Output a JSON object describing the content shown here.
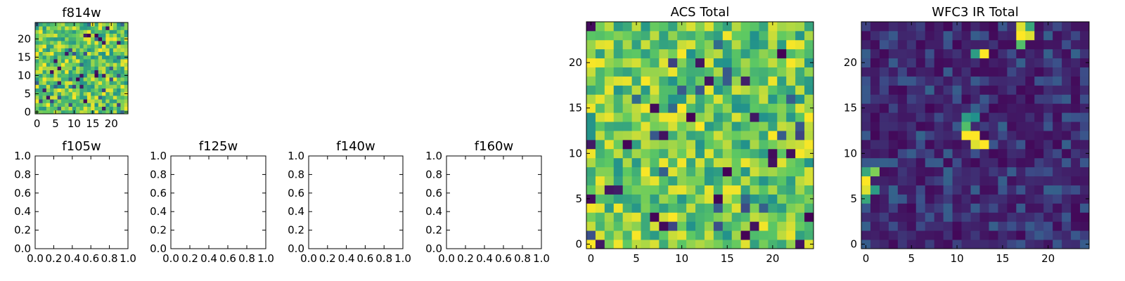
{
  "figure": {
    "background": "#ffffff"
  },
  "colormap": {
    "name": "viridis",
    "stops": [
      "#440154",
      "#3b528b",
      "#21918c",
      "#5ec962",
      "#fde725"
    ]
  },
  "chart_data": [
    {
      "id": "f814w",
      "type": "heatmap",
      "title": "f814w",
      "xlim": [
        -0.5,
        24.5
      ],
      "ylim": [
        -0.5,
        24.5
      ],
      "xticks": [
        0,
        5,
        10,
        15,
        20
      ],
      "xtick_labels": [
        "0",
        "5",
        "10",
        "15",
        "20"
      ],
      "yticks": [
        0,
        5,
        10,
        15,
        20
      ],
      "ytick_labels": [
        "0",
        "5",
        "10",
        "15",
        "20"
      ],
      "grid": false,
      "grid_size": [
        25,
        25
      ],
      "values_description": "noise-like pixel intensities, mostly green-yellow",
      "seed": 11,
      "distribution": "noise_high",
      "hotspots": []
    },
    {
      "id": "f105w",
      "type": "empty",
      "title": "f105w",
      "xlim": [
        0,
        1
      ],
      "ylim": [
        0,
        1
      ],
      "xticks": [
        0,
        0.2,
        0.4,
        0.6,
        0.8,
        1.0
      ],
      "xtick_labels": [
        "0.0",
        "0.2",
        "0.4",
        "0.6",
        "0.8",
        "1.0"
      ],
      "yticks": [
        0,
        0.2,
        0.4,
        0.6,
        0.8,
        1.0
      ],
      "ytick_labels": [
        "0.0",
        "0.2",
        "0.4",
        "0.6",
        "0.8",
        "1.0"
      ],
      "grid": false
    },
    {
      "id": "f125w",
      "type": "empty",
      "title": "f125w",
      "xlim": [
        0,
        1
      ],
      "ylim": [
        0,
        1
      ],
      "xticks": [
        0,
        0.2,
        0.4,
        0.6,
        0.8,
        1.0
      ],
      "xtick_labels": [
        "0.0",
        "0.2",
        "0.4",
        "0.6",
        "0.8",
        "1.0"
      ],
      "yticks": [
        0,
        0.2,
        0.4,
        0.6,
        0.8,
        1.0
      ],
      "ytick_labels": [
        "0.0",
        "0.2",
        "0.4",
        "0.6",
        "0.8",
        "1.0"
      ],
      "grid": false
    },
    {
      "id": "f140w",
      "type": "empty",
      "title": "f140w",
      "xlim": [
        0,
        1
      ],
      "ylim": [
        0,
        1
      ],
      "xticks": [
        0,
        0.2,
        0.4,
        0.6,
        0.8,
        1.0
      ],
      "xtick_labels": [
        "0.0",
        "0.2",
        "0.4",
        "0.6",
        "0.8",
        "1.0"
      ],
      "yticks": [
        0,
        0.2,
        0.4,
        0.6,
        0.8,
        1.0
      ],
      "ytick_labels": [
        "0.0",
        "0.2",
        "0.4",
        "0.6",
        "0.8",
        "1.0"
      ],
      "grid": false
    },
    {
      "id": "f160w",
      "type": "empty",
      "title": "f160w",
      "xlim": [
        0,
        1
      ],
      "ylim": [
        0,
        1
      ],
      "xticks": [
        0,
        0.2,
        0.4,
        0.6,
        0.8,
        1.0
      ],
      "xtick_labels": [
        "0.0",
        "0.2",
        "0.4",
        "0.6",
        "0.8",
        "1.0"
      ],
      "yticks": [
        0,
        0.2,
        0.4,
        0.6,
        0.8,
        1.0
      ],
      "ytick_labels": [
        "0.0",
        "0.2",
        "0.4",
        "0.6",
        "0.8",
        "1.0"
      ],
      "grid": false
    },
    {
      "id": "acs_total",
      "type": "heatmap",
      "title": "ACS Total",
      "xlim": [
        -0.5,
        24.5
      ],
      "ylim": [
        -0.5,
        24.5
      ],
      "xticks": [
        0,
        5,
        10,
        15,
        20
      ],
      "xtick_labels": [
        "0",
        "5",
        "10",
        "15",
        "20"
      ],
      "yticks": [
        0,
        5,
        10,
        15,
        20
      ],
      "ytick_labels": [
        "0",
        "5",
        "10",
        "15",
        "20"
      ],
      "grid": false,
      "grid_size": [
        25,
        25
      ],
      "values_description": "noise-like pixel intensities, mostly green-yellow with scattered dark pixels",
      "seed": 37,
      "distribution": "noise_high",
      "hotspots": []
    },
    {
      "id": "wfc3_ir_total",
      "type": "heatmap",
      "title": "WFC3 IR Total",
      "xlim": [
        -0.5,
        24.5
      ],
      "ylim": [
        -0.5,
        24.5
      ],
      "xticks": [
        0,
        5,
        10,
        15,
        20
      ],
      "xtick_labels": [
        "0",
        "5",
        "10",
        "15",
        "20"
      ],
      "yticks": [
        0,
        5,
        10,
        15,
        20
      ],
      "ytick_labels": [
        "0",
        "5",
        "10",
        "15",
        "20"
      ],
      "grid": false,
      "grid_size": [
        25,
        25
      ],
      "values_description": "low background (dark purple) with a few bright sources",
      "seed": 73,
      "distribution": "noise_low",
      "hotspots": [
        {
          "x": 17,
          "y": 24,
          "v": 0.95
        },
        {
          "x": 18,
          "y": 24,
          "v": 0.6
        },
        {
          "x": 17,
          "y": 23,
          "v": 1.0
        },
        {
          "x": 18,
          "y": 23,
          "v": 0.95
        },
        {
          "x": 17,
          "y": 22,
          "v": 0.7
        },
        {
          "x": 13,
          "y": 21,
          "v": 1.0
        },
        {
          "x": 12,
          "y": 21,
          "v": 0.55
        },
        {
          "x": 11,
          "y": 14,
          "v": 0.55
        },
        {
          "x": 12,
          "y": 14,
          "v": 0.5
        },
        {
          "x": 11,
          "y": 13,
          "v": 0.7
        },
        {
          "x": 11,
          "y": 12,
          "v": 1.0
        },
        {
          "x": 12,
          "y": 12,
          "v": 1.0
        },
        {
          "x": 12,
          "y": 11,
          "v": 0.95
        },
        {
          "x": 13,
          "y": 11,
          "v": 1.0
        },
        {
          "x": 1,
          "y": 8,
          "v": 0.8
        },
        {
          "x": 0,
          "y": 8,
          "v": 0.6
        },
        {
          "x": 0,
          "y": 7,
          "v": 1.0
        },
        {
          "x": 0,
          "y": 6,
          "v": 0.95
        },
        {
          "x": 1,
          "y": 6,
          "v": 0.55
        },
        {
          "x": 0,
          "y": 5,
          "v": 0.6
        }
      ]
    }
  ]
}
